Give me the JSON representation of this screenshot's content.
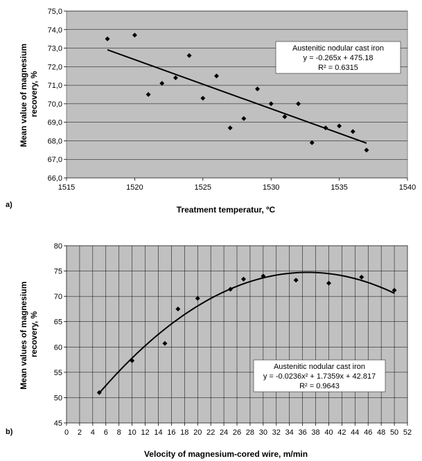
{
  "chart_data": [
    {
      "type": "scatter",
      "panel_label": "a)",
      "xlabel": "Treatment temperatur, ºC",
      "ylabel": "Mean value of magnesium recovery, %",
      "xlim": [
        1515,
        1540
      ],
      "ylim": [
        66.0,
        75.0
      ],
      "x_ticks": [
        1515,
        1520,
        1525,
        1530,
        1535,
        1540
      ],
      "y_ticks": [
        "66,0",
        "67,0",
        "68,0",
        "69,0",
        "70,0",
        "71,0",
        "72,0",
        "73,0",
        "74,0",
        "75,0"
      ],
      "grid": "horizontal",
      "series": [
        {
          "x": [
            1518,
            1520,
            1521,
            1522,
            1523,
            1524,
            1525,
            1526,
            1527,
            1528,
            1529,
            1530,
            1531,
            1532,
            1533,
            1534,
            1535,
            1536,
            1537
          ],
          "y": [
            73.5,
            73.7,
            70.5,
            71.1,
            71.4,
            72.6,
            70.3,
            71.5,
            68.7,
            69.2,
            70.8,
            70.0,
            69.3,
            70.0,
            67.9,
            68.7,
            68.8,
            68.5,
            67.5
          ]
        }
      ],
      "trendline": {
        "kind": "linear",
        "slope": -0.265,
        "intercept": 475.18,
        "x_range": [
          1518,
          1537
        ]
      },
      "annotation": [
        "Austenitic nodular cast iron",
        "y = -0.265x + 475.18",
        "R² = 0.6315"
      ]
    },
    {
      "type": "scatter",
      "panel_label": "b)",
      "xlabel": "Velocity of magnesium-cored wire, m/min",
      "ylabel": "Mean values of magnesium recovery, %",
      "xlim": [
        0,
        52
      ],
      "ylim": [
        45,
        80
      ],
      "x_ticks": [
        0,
        2,
        4,
        6,
        8,
        10,
        12,
        14,
        16,
        18,
        20,
        22,
        24,
        26,
        28,
        30,
        32,
        34,
        36,
        38,
        40,
        42,
        44,
        46,
        48,
        50,
        52
      ],
      "y_ticks": [
        45,
        50,
        55,
        60,
        65,
        70,
        75,
        80
      ],
      "grid": "both",
      "series": [
        {
          "x": [
            5,
            10,
            15,
            17,
            20,
            25,
            27,
            30,
            35,
            40,
            45,
            50
          ],
          "y": [
            51.0,
            57.3,
            60.7,
            67.5,
            69.6,
            71.4,
            73.4,
            74.0,
            73.2,
            72.6,
            73.8,
            71.2
          ]
        }
      ],
      "trendline": {
        "kind": "quadratic",
        "a": -0.0236,
        "b": 1.7359,
        "c": 42.817,
        "x_range": [
          5,
          50
        ]
      },
      "annotation": [
        "Austenitic nodular cast iron",
        "y = -0.0236x² + 1.7359x + 42.817",
        "R² = 0.9643"
      ]
    }
  ]
}
